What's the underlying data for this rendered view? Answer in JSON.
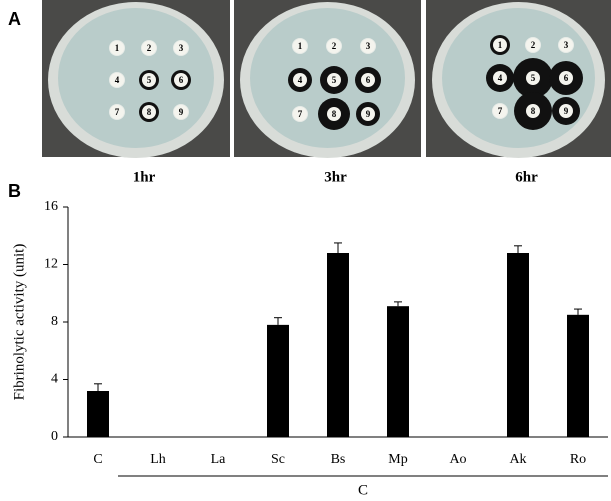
{
  "panel_a": {
    "label": "A",
    "captions": [
      "1hr",
      "3hr",
      "6hr"
    ],
    "well_labels": [
      "1",
      "2",
      "3",
      "4",
      "5",
      "6",
      "7",
      "8",
      "9"
    ]
  },
  "chart_data": {
    "type": "bar",
    "panel_label": "B",
    "y_label": "Fibrinolytic activity (unit)",
    "categories": [
      "C",
      "Lh",
      "La",
      "Sc",
      "Bs",
      "Mp",
      "Ao",
      "Ak",
      "Ro"
    ],
    "values": [
      3.2,
      0,
      0,
      7.8,
      12.8,
      9.1,
      0,
      12.8,
      8.5
    ],
    "errors": [
      0.5,
      null,
      null,
      0.5,
      0.7,
      0.3,
      null,
      0.5,
      0.4
    ],
    "group_label": "C",
    "color": "#000000",
    "ylim": [
      0,
      16
    ],
    "yticks": [
      0,
      4,
      8,
      12,
      16
    ]
  }
}
